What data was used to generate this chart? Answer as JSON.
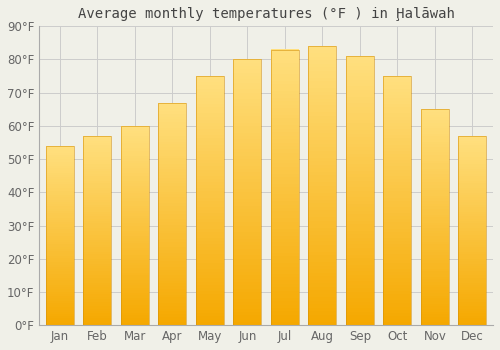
{
  "title": "Average monthly temperatures (°F ) in Ḩalāwah",
  "months": [
    "Jan",
    "Feb",
    "Mar",
    "Apr",
    "May",
    "Jun",
    "Jul",
    "Aug",
    "Sep",
    "Oct",
    "Nov",
    "Dec"
  ],
  "values": [
    54,
    57,
    60,
    67,
    75,
    80,
    83,
    84,
    81,
    75,
    65,
    57
  ],
  "ylim": [
    0,
    90
  ],
  "yticks": [
    0,
    10,
    20,
    30,
    40,
    50,
    60,
    70,
    80,
    90
  ],
  "ytick_labels": [
    "0°F",
    "10°F",
    "20°F",
    "30°F",
    "40°F",
    "50°F",
    "60°F",
    "70°F",
    "80°F",
    "90°F"
  ],
  "bg_color": "#f0f0e8",
  "plot_bg_color": "#f0f0e8",
  "grid_color": "#cccccc",
  "bar_color_bottom": "#F5A800",
  "bar_color_top": "#FFE080",
  "bar_edge_color": "#D4900A",
  "title_fontsize": 10,
  "tick_fontsize": 8.5,
  "bar_width": 0.75
}
